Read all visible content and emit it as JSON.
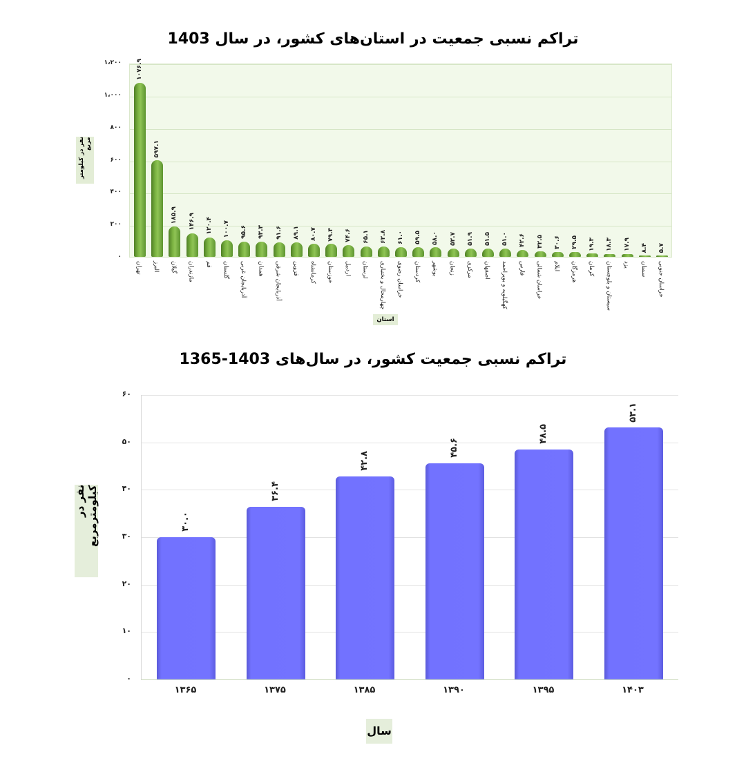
{
  "chart_data": [
    {
      "type": "bar",
      "title": "تراکم نسبی جمعیت در استان‌های کشور، در سال 1403",
      "xlabel": "استان",
      "ylabel": "نفر در کیلومتر مربع",
      "ylim": [
        0,
        1200
      ],
      "yticks": [
        "۰",
        "۲۰۰",
        "۴۰۰",
        "۶۰۰",
        "۸۰۰",
        "۱،۰۰۰",
        "۱،۲۰۰"
      ],
      "ytick_values": [
        0,
        200,
        400,
        600,
        800,
        1000,
        1200
      ],
      "grid": true,
      "color": "#7cb342",
      "categories": [
        "تهران",
        "البرز",
        "گیلان",
        "مازندران",
        "قم",
        "گلستان",
        "آذربایجان غربی",
        "همدان",
        "آذربایجان شرقی",
        "قزوین",
        "کرمانشاه",
        "خوزستان",
        "اردبیل",
        "لرستان",
        "چهارمحال و بختیاری",
        "خراسان رضوی",
        "کردستان",
        "بوشهر",
        "زنجان",
        "مرکزی",
        "اصفهان",
        "کهگیلویه و بویراحمد",
        "فارس",
        "خراسان شمالی",
        "ایلام",
        "هرمزگان",
        "کرمان",
        "سیستان و بلوچستان",
        "یزد",
        "سمنان",
        "خراسان جنوبی"
      ],
      "values": [
        1076.9,
        597.1,
        185.9,
        146.9,
        120.4,
        100.7,
        95.6,
        93.3,
        91.6,
        89.1,
        80.7,
        79.3,
        74.6,
        65.1,
        62.8,
        61.0,
        59.5,
        58.0,
        52.7,
        51.9,
        51.5,
        51.0,
        42.6,
        32.5,
        30.6,
        29.5,
        19.3,
        18.3,
        17.9,
        8.4,
        5.7
      ],
      "value_labels": [
        "۱۰۷۶.۹",
        "۵۹۷.۱",
        "۱۸۵.۹",
        "۱۴۶.۹",
        "۱۲۰.۴",
        "۱۰۰.۷",
        "۹۵.۶",
        "۹۳.۳",
        "۹۱.۶",
        "۸۹.۱",
        "۸۰.۷",
        "۷۹.۳",
        "۷۴.۶",
        "۶۵.۱",
        "۶۲.۸",
        "۶۱.۰",
        "۵۹.۵",
        "۵۸.۰",
        "۵۲.۷",
        "۵۱.۹",
        "۵۱.۵",
        "۵۱.۰",
        "۴۲.۶",
        "۳۲.۵",
        "۳۰.۶",
        "۲۹.۵",
        "۱۹.۳",
        "۱۸.۳",
        "۱۷.۹",
        "۸.۴",
        "۵.۷"
      ]
    },
    {
      "type": "bar",
      "title": "تراکم نسبی جمعیت کشور، در سال‌های 1403-1365",
      "xlabel": "سال",
      "ylabel": "نفر در کیلومترمربع",
      "ylim": [
        0,
        60
      ],
      "yticks": [
        "۰",
        "۱۰",
        "۲۰",
        "۳۰",
        "۴۰",
        "۵۰",
        "۶۰"
      ],
      "ytick_values": [
        0,
        10,
        20,
        30,
        40,
        50,
        60
      ],
      "grid": true,
      "color": "#7373ff",
      "categories": [
        "۱۳۶۵",
        "۱۳۷۵",
        "۱۳۸۵",
        "۱۳۹۰",
        "۱۳۹۵",
        "۱۴۰۳"
      ],
      "values": [
        30.0,
        36.4,
        42.8,
        45.6,
        48.5,
        53.1
      ],
      "value_labels": [
        "۳۰.۰",
        "۳۶.۴",
        "۴۲.۸",
        "۴۵.۶",
        "۴۸.۵",
        "۵۳.۱"
      ]
    }
  ]
}
